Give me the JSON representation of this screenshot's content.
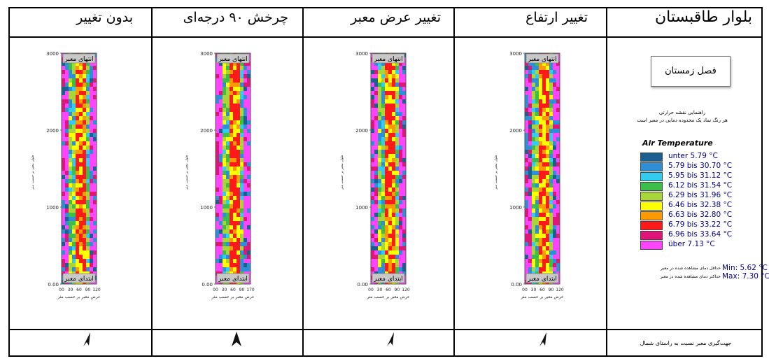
{
  "columns": [
    {
      "title": "بدون تغییر"
    },
    {
      "title": "چرخش ۹۰ درجه‌ای"
    },
    {
      "title": "تغییر عرض معبر"
    },
    {
      "title": "تغییر ارتفاع"
    }
  ],
  "header_right": "بلوار طاقبستان",
  "season": "فصل زمستان",
  "map_labels": {
    "top": "انتهای معبر",
    "bottom": "ابتدای معبر"
  },
  "axis": {
    "y_ticks": [
      "3000",
      "2000",
      "1000",
      "0.00"
    ],
    "x_ticks_a": [
      "00",
      "30",
      "60",
      "90",
      "120"
    ],
    "x_ticks_b": [
      "00",
      "30",
      "60",
      "90",
      "170"
    ],
    "x_label": "عرض معبر بر حسب متر",
    "y_label": "طول معبر بر حسب متر"
  },
  "guide": {
    "line1": "راهنمایی نقشه حرارتی",
    "line2": "هر رنگ نماد یک محدوده دمایی در معبر است"
  },
  "legend": {
    "title": "Air Temperature",
    "items": [
      {
        "label": "unter  5.79  °C",
        "color": "#1a5f8f"
      },
      {
        "label": "5.79  bis 30.70 °C",
        "color": "#2f8fd6"
      },
      {
        "label": "5.95  bis 31.12 °C",
        "color": "#33ccf0"
      },
      {
        "label": "6.12  bis 31.54 °C",
        "color": "#3bbf4a"
      },
      {
        "label": "6.29  bis 31.96 °C",
        "color": "#a8d63a"
      },
      {
        "label": "6.46  bis 32.38 °C",
        "color": "#ffff00"
      },
      {
        "label": "6.63  bis 32.80 °C",
        "color": "#ff9900"
      },
      {
        "label": "6.79  bis 33.22 °C",
        "color": "#ff1a1a"
      },
      {
        "label": "6.96  bis 33.64 °C",
        "color": "#e0157a"
      },
      {
        "label": "über  7.13  °C",
        "color": "#ff44ff"
      }
    ]
  },
  "min_text": "Min:  5.62  °C",
  "max_text": "Max: 7.30  °C",
  "min_note": "حداقل دمای مشاهده شده در معبر",
  "max_note": "حداکثر دمای مشاهده شده در معبر",
  "north_note": "جهت‌گیری معبر نسبت به راستای شمال"
}
